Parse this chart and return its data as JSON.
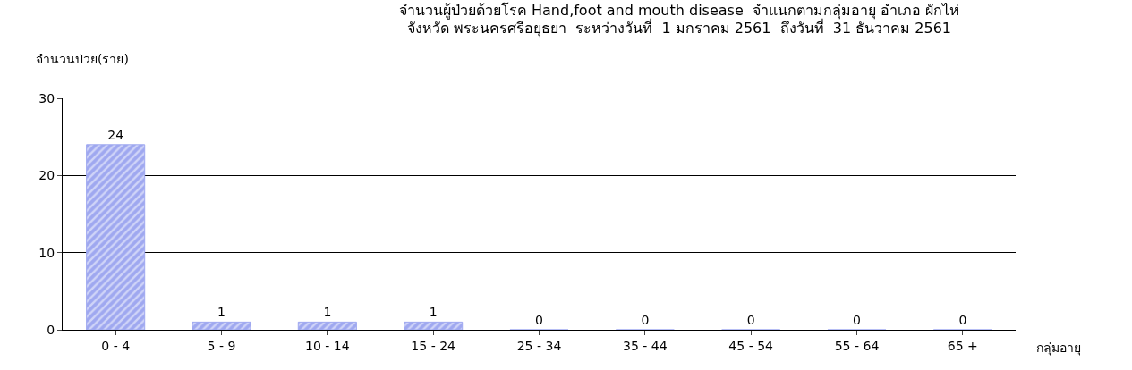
{
  "chart_data": {
    "type": "bar",
    "title": "จำนวนผู้ป่วยด้วยโรค Hand,foot and mouth disease  จำแนกตามกลุ่มอายุ อำเภอ ผักไห่\nจังหวัด พระนครศรีอยุธยา  ระหว่างวันที่  1 มกราคม 2561  ถึงวันที่  31 ธันวาคม 2561",
    "ylabel": "จำนวนป่วย(ราย)",
    "xlabel": "กลุ่มอายุ",
    "categories": [
      "0 - 4",
      "5 - 9",
      "10 - 14",
      "15 - 24",
      "25 - 34",
      "35 - 44",
      "45 - 54",
      "55 - 64",
      "65 +"
    ],
    "values": [
      24,
      1,
      1,
      1,
      0,
      0,
      0,
      0,
      0
    ],
    "color": "#9fa8f0",
    "ylim": [
      0,
      30
    ],
    "yticks": [
      0,
      10,
      20,
      30
    ],
    "grid": "y",
    "data_labels": true,
    "legend": false
  }
}
